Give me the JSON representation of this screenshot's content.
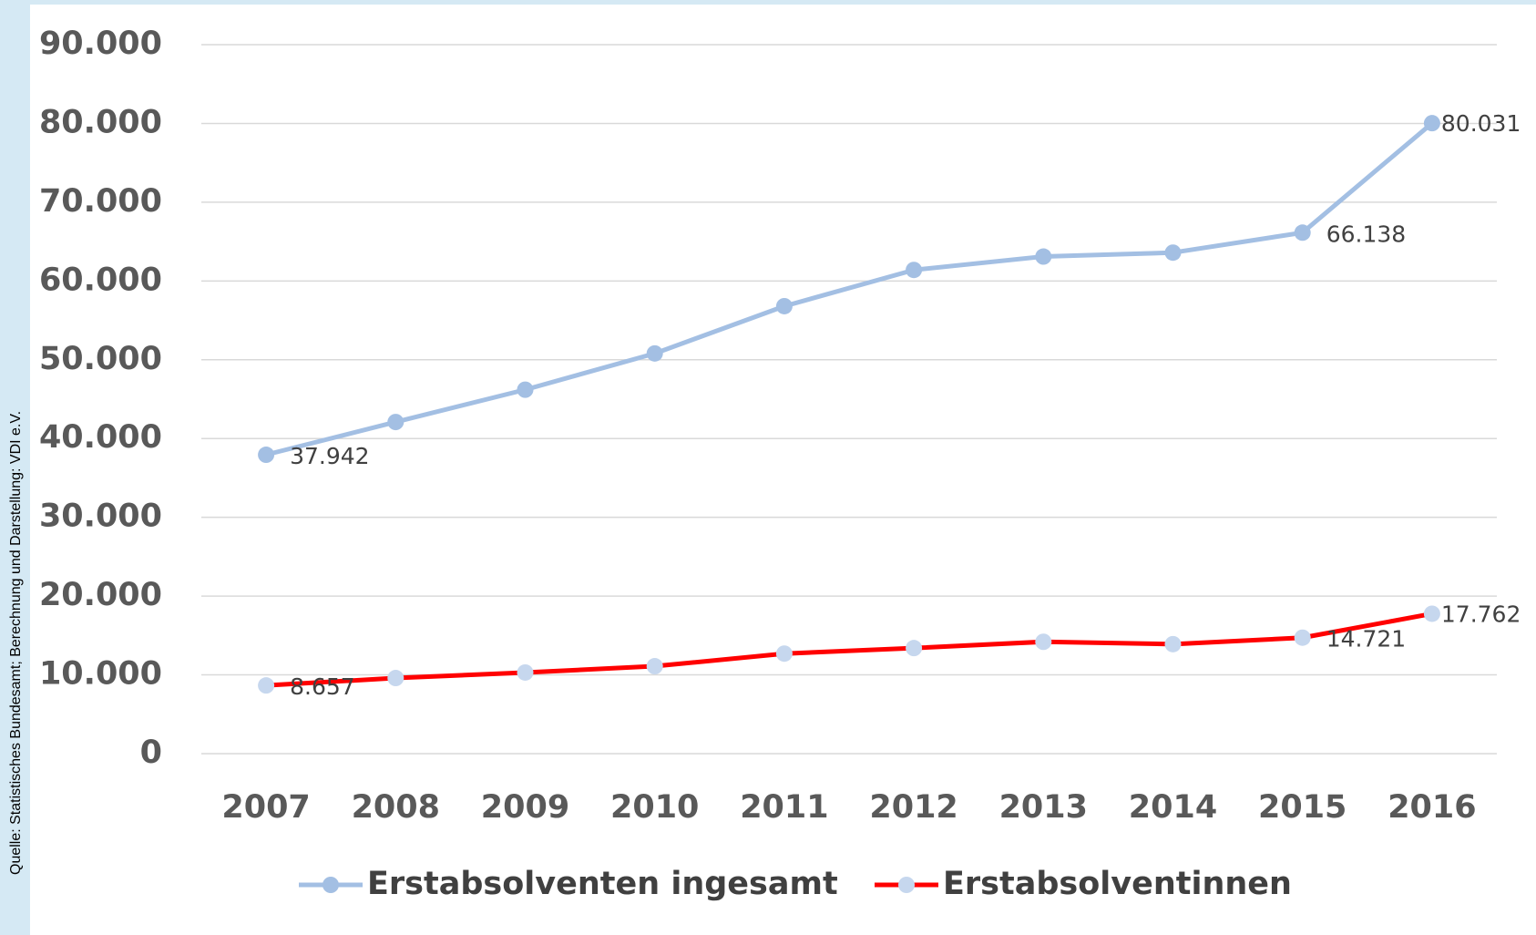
{
  "chart_data": {
    "type": "line",
    "source": "Quelle: Statistisches Bundesamt; Berechnung und Darstellung: VDI e.V.",
    "categories": [
      "2007",
      "2008",
      "2009",
      "2010",
      "2011",
      "2012",
      "2013",
      "2014",
      "2015",
      "2016"
    ],
    "series": [
      {
        "name": "Erstabsolventen ingesamt",
        "color": "#a3bfe3",
        "marker_color": "#a3bfe3",
        "values": [
          37942,
          42100,
          46200,
          50800,
          56800,
          61400,
          63100,
          63600,
          66138,
          80031
        ],
        "value_labels": [
          "37.942",
          null,
          null,
          null,
          null,
          null,
          null,
          null,
          "66.138",
          "80.031"
        ]
      },
      {
        "name": "Erstabsolventinnen",
        "color": "#ff0000",
        "marker_color": "#c6d7ee",
        "values": [
          8657,
          9600,
          10300,
          11100,
          12700,
          13400,
          14200,
          13900,
          14721,
          17762
        ],
        "value_labels": [
          "8.657",
          null,
          null,
          null,
          null,
          null,
          null,
          null,
          "14.721",
          "17.762"
        ]
      }
    ],
    "ylim": [
      0,
      90000
    ],
    "yticks": [
      0,
      {
        "value": 10000,
        "label": "10.000"
      },
      {
        "value": 20000,
        "label": "20.000"
      },
      {
        "value": 30000,
        "label": "30.000"
      },
      {
        "value": 40000,
        "label": "40.000"
      },
      {
        "value": 50000,
        "label": "50.000"
      },
      {
        "value": 60000,
        "label": "60.000"
      },
      {
        "value": 70000,
        "label": "70.000"
      },
      {
        "value": 80000,
        "label": "80.000"
      },
      {
        "value": 90000,
        "label": "90.000"
      }
    ],
    "grid": true,
    "legend": "bottom"
  }
}
